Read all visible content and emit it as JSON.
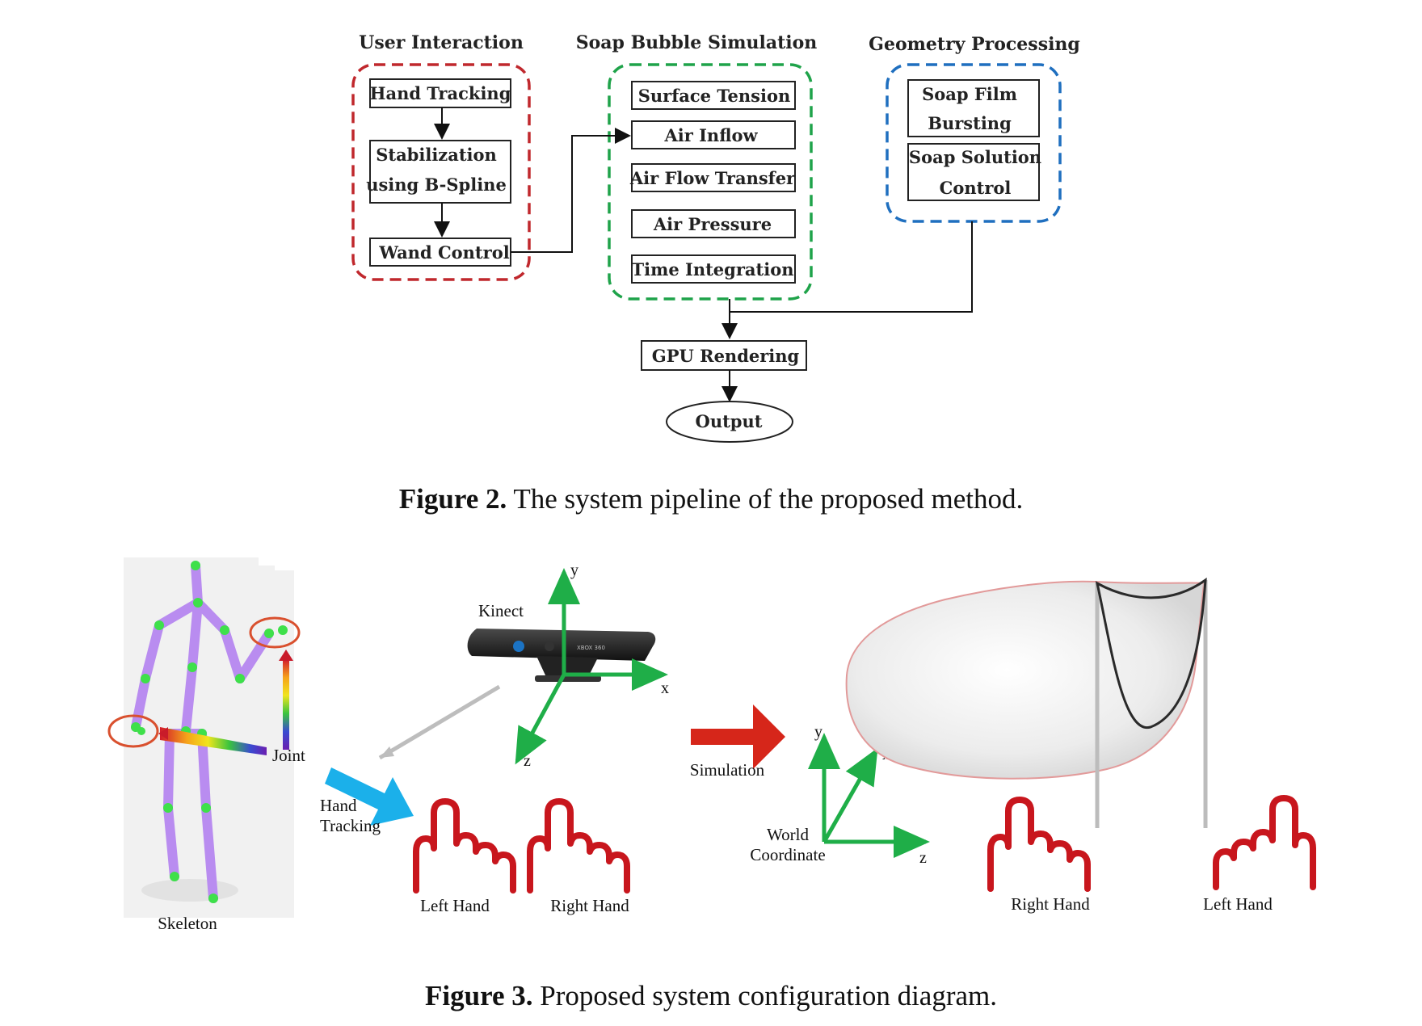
{
  "figure2": {
    "groups": {
      "user_interaction": "User Interaction",
      "soap_bubble_simulation": "Soap Bubble Simulation",
      "geometry_processing": "Geometry Processing"
    },
    "boxes": {
      "hand_tracking": "Hand Tracking",
      "stabilization_1": "Stabilization",
      "stabilization_2": "using B-Spline",
      "wand_control": "Wand Control",
      "surface_tension": "Surface Tension",
      "air_inflow": "Air Inflow",
      "air_flow_transfer": "Air Flow Transfer",
      "air_pressure": "Air Pressure",
      "time_integration": "Time Integration",
      "soap_film_1": "Soap Film",
      "soap_film_2": "Bursting",
      "soap_solution_1": "Soap Solution",
      "soap_solution_2": "Control",
      "gpu_rendering": "GPU Rendering",
      "output": "Output"
    },
    "caption_label": "Figure 2.",
    "caption_text": " The system pipeline of the proposed method.",
    "colors": {
      "user_interaction": "#c0282d",
      "soap_bubble_simulation": "#1fa34a",
      "geometry_processing": "#1f6fbf"
    }
  },
  "figure3": {
    "labels": {
      "skeleton": "Skeleton",
      "joint": "Joint",
      "hand_tracking_1": "Hand",
      "hand_tracking_2": "Tracking",
      "kinect": "Kinect",
      "kinect_brand": "XBOX 360",
      "left_hand_1": "Left Hand",
      "right_hand_1": "Right Hand",
      "simulation": "Simulation",
      "world_1": "World",
      "world_2": "Coordinate",
      "right_hand_2": "Right Hand",
      "left_hand_2": "Left Hand"
    },
    "axes_kinect": {
      "x": "x",
      "y": "y",
      "z": "z"
    },
    "axes_world": {
      "x": "x",
      "y": "y",
      "z": "z"
    },
    "caption_label": "Figure 3.",
    "caption_text": " Proposed system configuration diagram.",
    "colors": {
      "axis": "#1fae48",
      "hand": "#c8161d",
      "skeleton": "#b98cf0",
      "joint_dot": "#3ee04a",
      "arrow_blue": "#1bb0ea",
      "arrow_red": "#d6261a"
    },
    "icons": [
      "kinect-sensor-icon",
      "hand-pointing-icon",
      "soap-bubble-icon",
      "skeleton-figure-icon"
    ]
  }
}
